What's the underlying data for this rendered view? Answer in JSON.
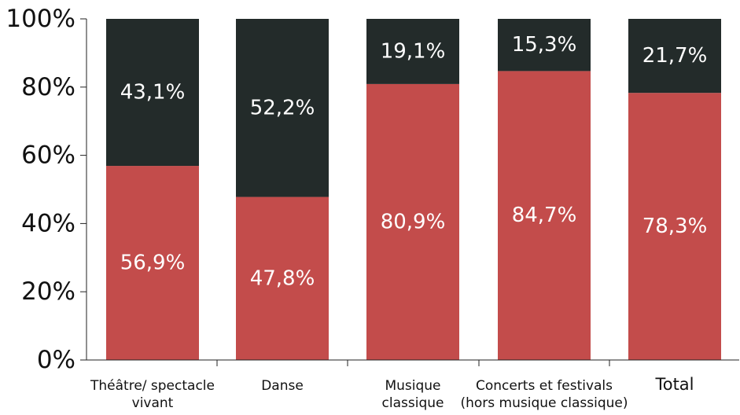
{
  "chart_data": {
    "type": "bar",
    "stacked": true,
    "categories": [
      [
        "Théâtre/ spectacle",
        "vivant"
      ],
      [
        "Danse"
      ],
      [
        "Musique",
        "classique"
      ],
      [
        "Concerts et festivals",
        "(hors musique classique)"
      ],
      [
        "Total"
      ]
    ],
    "series": [
      {
        "values": [
          56.9,
          47.8,
          80.9,
          84.7,
          78.3
        ],
        "labels": [
          "56,9%",
          "47,8%",
          "80,9%",
          "84,7%",
          "78,3%"
        ],
        "color": "#c34c4b"
      },
      {
        "values": [
          43.1,
          52.2,
          19.1,
          15.3,
          21.7
        ],
        "labels": [
          "43,1%",
          "52,2%",
          "19,1%",
          "15,3%",
          "21,7%"
        ],
        "color": "#232b2a"
      }
    ],
    "ylim": [
      0,
      100
    ],
    "yticks": [
      0,
      20,
      40,
      60,
      80,
      100
    ],
    "ytick_labels": [
      "0%",
      "20%",
      "40%",
      "60%",
      "80%",
      "100%"
    ],
    "grid": false,
    "legend": false
  }
}
